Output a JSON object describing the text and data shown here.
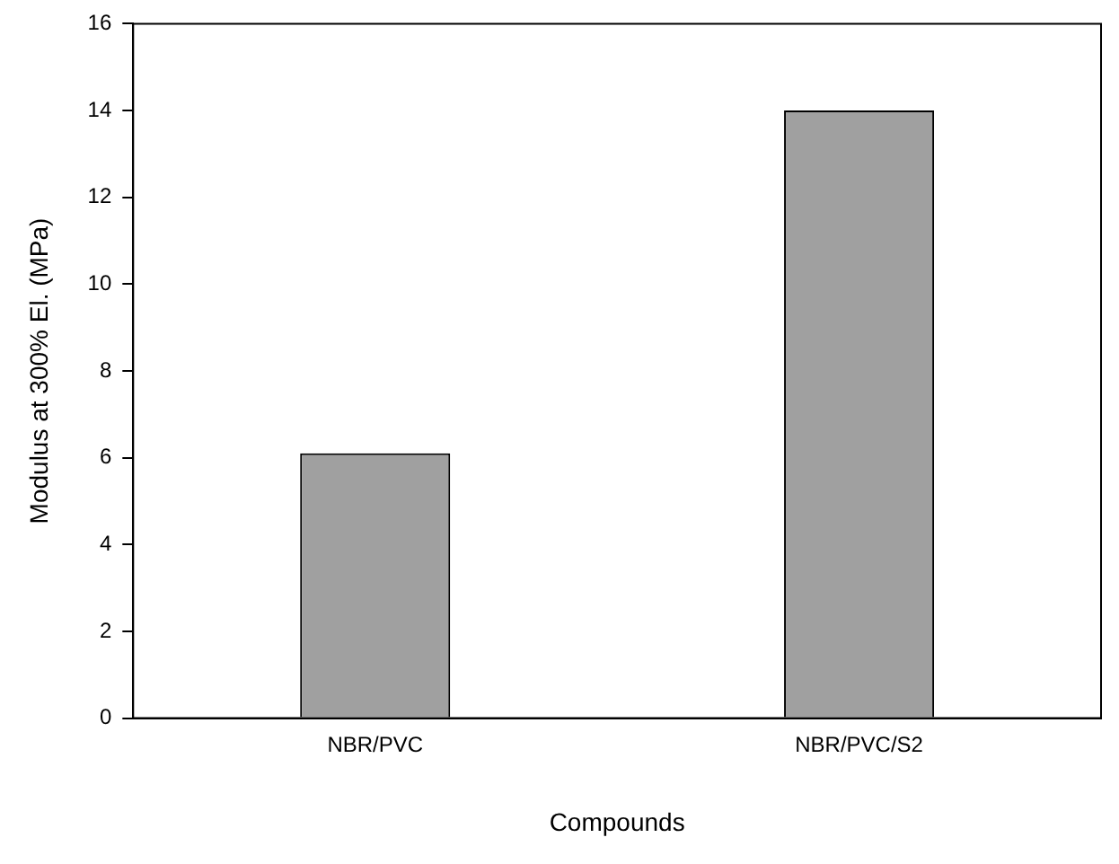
{
  "chart_data": {
    "type": "bar",
    "xlabel": "Compounds",
    "ylabel": "Modulus at 300% El. (MPa)",
    "categories": [
      "NBR/PVC",
      "NBR/PVC/S2"
    ],
    "values": [
      6.1,
      14.0
    ],
    "color": "#a0a0a0",
    "ylim": [
      0,
      16
    ],
    "yticks": [
      0,
      2,
      4,
      6,
      8,
      10,
      12,
      14,
      16
    ],
    "grid": false,
    "legend": false
  }
}
